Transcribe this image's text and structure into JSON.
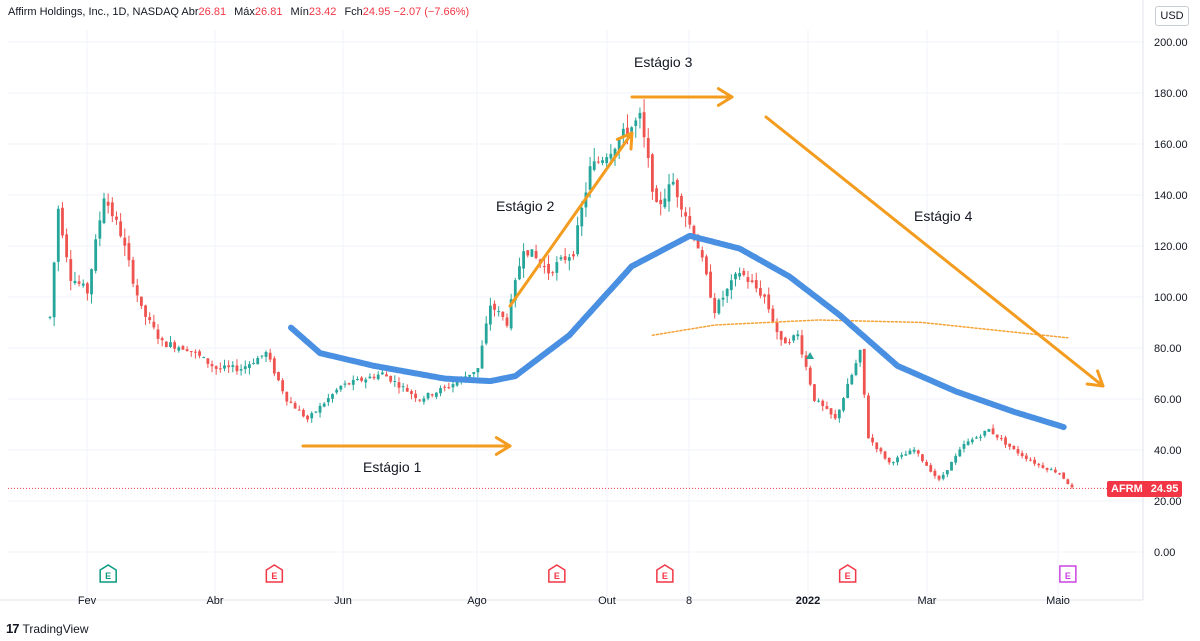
{
  "header": {
    "symbol": "Affirm Holdings, Inc., 1D, NASDAQ",
    "open_label": "Abr",
    "open_value": "26.81",
    "high_label": "Máx",
    "high_value": "26.81",
    "low_label": "Mín",
    "low_value": "23.42",
    "close_label": "Fch",
    "close_value": "24.95 −2.07 (−7.66%)"
  },
  "currency": "USD",
  "price_tag": {
    "ticker": "AFRM",
    "price": "24.95"
  },
  "brand": {
    "logo": "17",
    "name": "TradingView"
  },
  "stages": [
    "Estágio 1",
    "Estágio 2",
    "Estágio 3",
    "Estágio 4"
  ],
  "colors": {
    "up": "#26a69a",
    "down": "#ef5350",
    "ma_fast": "#4a90e2",
    "ma_slow": "#f7a233",
    "arrows": "#f39c1f",
    "last_price_line": "#f23645",
    "earnings_green": "#089981",
    "earnings_red": "#f23645",
    "earnings_purple": "#c945e0"
  },
  "chart_data": {
    "type": "candlestick",
    "title": "Affirm Holdings, Inc., 1D, NASDAQ",
    "ylim": [
      0,
      200
    ],
    "y_ticks": [
      "200.00",
      "180.00",
      "160.00",
      "140.00",
      "120.00",
      "100.00",
      "80.00",
      "60.00",
      "40.00",
      "20.00",
      "0.00"
    ],
    "x_ticks": [
      "Fev",
      "Abr",
      "Jun",
      "Ago",
      "Out",
      "8",
      "2022",
      "Mar",
      "Maio"
    ],
    "price_path": [
      {
        "t": 0,
        "p": 92
      },
      {
        "t": 2,
        "p": 135
      },
      {
        "t": 5,
        "p": 108
      },
      {
        "t": 9,
        "p": 102
      },
      {
        "t": 13,
        "p": 140
      },
      {
        "t": 17,
        "p": 125
      },
      {
        "t": 22,
        "p": 95
      },
      {
        "t": 27,
        "p": 82
      },
      {
        "t": 33,
        "p": 80
      },
      {
        "t": 40,
        "p": 72
      },
      {
        "t": 46,
        "p": 72
      },
      {
        "t": 52,
        "p": 78
      },
      {
        "t": 57,
        "p": 60
      },
      {
        "t": 62,
        "p": 52
      },
      {
        "t": 70,
        "p": 65
      },
      {
        "t": 80,
        "p": 70
      },
      {
        "t": 89,
        "p": 60
      },
      {
        "t": 96,
        "p": 65
      },
      {
        "t": 103,
        "p": 72
      },
      {
        "t": 106,
        "p": 97
      },
      {
        "t": 110,
        "p": 90
      },
      {
        "t": 114,
        "p": 120
      },
      {
        "t": 120,
        "p": 110
      },
      {
        "t": 126,
        "p": 118
      },
      {
        "t": 130,
        "p": 150
      },
      {
        "t": 136,
        "p": 160
      },
      {
        "t": 142,
        "p": 170
      },
      {
        "t": 146,
        "p": 135
      },
      {
        "t": 150,
        "p": 145
      },
      {
        "t": 156,
        "p": 120
      },
      {
        "t": 160,
        "p": 95
      },
      {
        "t": 166,
        "p": 110
      },
      {
        "t": 172,
        "p": 100
      },
      {
        "t": 176,
        "p": 82
      },
      {
        "t": 180,
        "p": 85
      },
      {
        "t": 184,
        "p": 60
      },
      {
        "t": 189,
        "p": 52
      },
      {
        "t": 195,
        "p": 78
      },
      {
        "t": 197,
        "p": 45
      },
      {
        "t": 202,
        "p": 35
      },
      {
        "t": 208,
        "p": 40
      },
      {
        "t": 214,
        "p": 28
      },
      {
        "t": 220,
        "p": 42
      },
      {
        "t": 226,
        "p": 48
      },
      {
        "t": 232,
        "p": 40
      },
      {
        "t": 238,
        "p": 34
      },
      {
        "t": 243,
        "p": 31
      },
      {
        "t": 246,
        "p": 25
      }
    ],
    "t_max": 246,
    "ma_fast": [
      {
        "t": 58,
        "p": 88
      },
      {
        "t": 65,
        "p": 78
      },
      {
        "t": 78,
        "p": 73
      },
      {
        "t": 95,
        "p": 68
      },
      {
        "t": 106,
        "p": 67
      },
      {
        "t": 112,
        "p": 69
      },
      {
        "t": 125,
        "p": 85
      },
      {
        "t": 140,
        "p": 112
      },
      {
        "t": 154,
        "p": 124
      },
      {
        "t": 166,
        "p": 119
      },
      {
        "t": 178,
        "p": 108
      },
      {
        "t": 190,
        "p": 93
      },
      {
        "t": 204,
        "p": 73
      },
      {
        "t": 218,
        "p": 63
      },
      {
        "t": 232,
        "p": 55
      },
      {
        "t": 244,
        "p": 49
      }
    ],
    "ma_slow": [
      {
        "t": 145,
        "p": 85
      },
      {
        "t": 160,
        "p": 89
      },
      {
        "t": 185,
        "p": 91
      },
      {
        "t": 210,
        "p": 90
      },
      {
        "t": 245,
        "p": 84
      }
    ],
    "last_price": 24.95,
    "earnings_markers": [
      {
        "t": 14,
        "type": "green"
      },
      {
        "t": 54,
        "type": "red"
      },
      {
        "t": 122,
        "type": "red"
      },
      {
        "t": 148,
        "type": "red"
      },
      {
        "t": 192,
        "type": "red"
      },
      {
        "t": 245,
        "type": "purple"
      }
    ]
  }
}
